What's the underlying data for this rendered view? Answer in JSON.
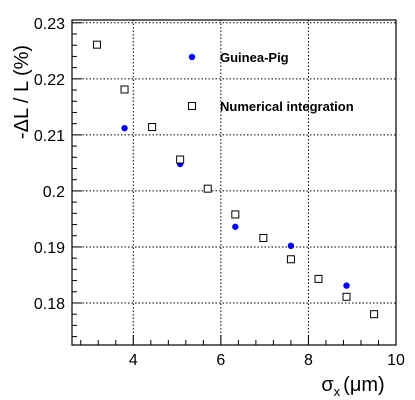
{
  "chart_data": {
    "type": "scatter",
    "xlabel": "σx (μm)",
    "xlabel_main": "σ",
    "xlabel_sub": "x",
    "xlabel_unit": "(μm)",
    "ylabel": "-ΔL / L (%)",
    "xlim": [
      2.6,
      10.0
    ],
    "ylim": [
      0.1725,
      0.2305
    ],
    "xticks": [
      4,
      6,
      8,
      10
    ],
    "xtick_labels": [
      "4",
      "6",
      "8",
      "10"
    ],
    "yticks": [
      0.18,
      0.19,
      0.2,
      0.21,
      0.22,
      0.23
    ],
    "ytick_labels": [
      "0.18",
      "0.19",
      "0.2",
      "0.21",
      "0.22",
      "0.23"
    ],
    "grid": true,
    "legend_position": "upper-right",
    "series": [
      {
        "name": "Guinea-Pig",
        "marker": "filled-circle",
        "color": "#0000ff",
        "points": [
          {
            "x": 3.8,
            "y": 0.2112
          },
          {
            "x": 5.07,
            "y": 0.2048
          },
          {
            "x": 6.33,
            "y": 0.1936
          },
          {
            "x": 7.6,
            "y": 0.1902
          },
          {
            "x": 8.87,
            "y": 0.1831
          }
        ]
      },
      {
        "name": "Numerical integration",
        "marker": "open-square",
        "color": "#000000",
        "points": [
          {
            "x": 3.17,
            "y": 0.2261
          },
          {
            "x": 3.8,
            "y": 0.2181
          },
          {
            "x": 4.43,
            "y": 0.2114
          },
          {
            "x": 5.07,
            "y": 0.2056
          },
          {
            "x": 5.7,
            "y": 0.2004
          },
          {
            "x": 6.33,
            "y": 0.1958
          },
          {
            "x": 6.97,
            "y": 0.1916
          },
          {
            "x": 7.6,
            "y": 0.1878
          },
          {
            "x": 8.23,
            "y": 0.1843
          },
          {
            "x": 8.87,
            "y": 0.1811
          },
          {
            "x": 9.5,
            "y": 0.178
          }
        ]
      }
    ]
  }
}
